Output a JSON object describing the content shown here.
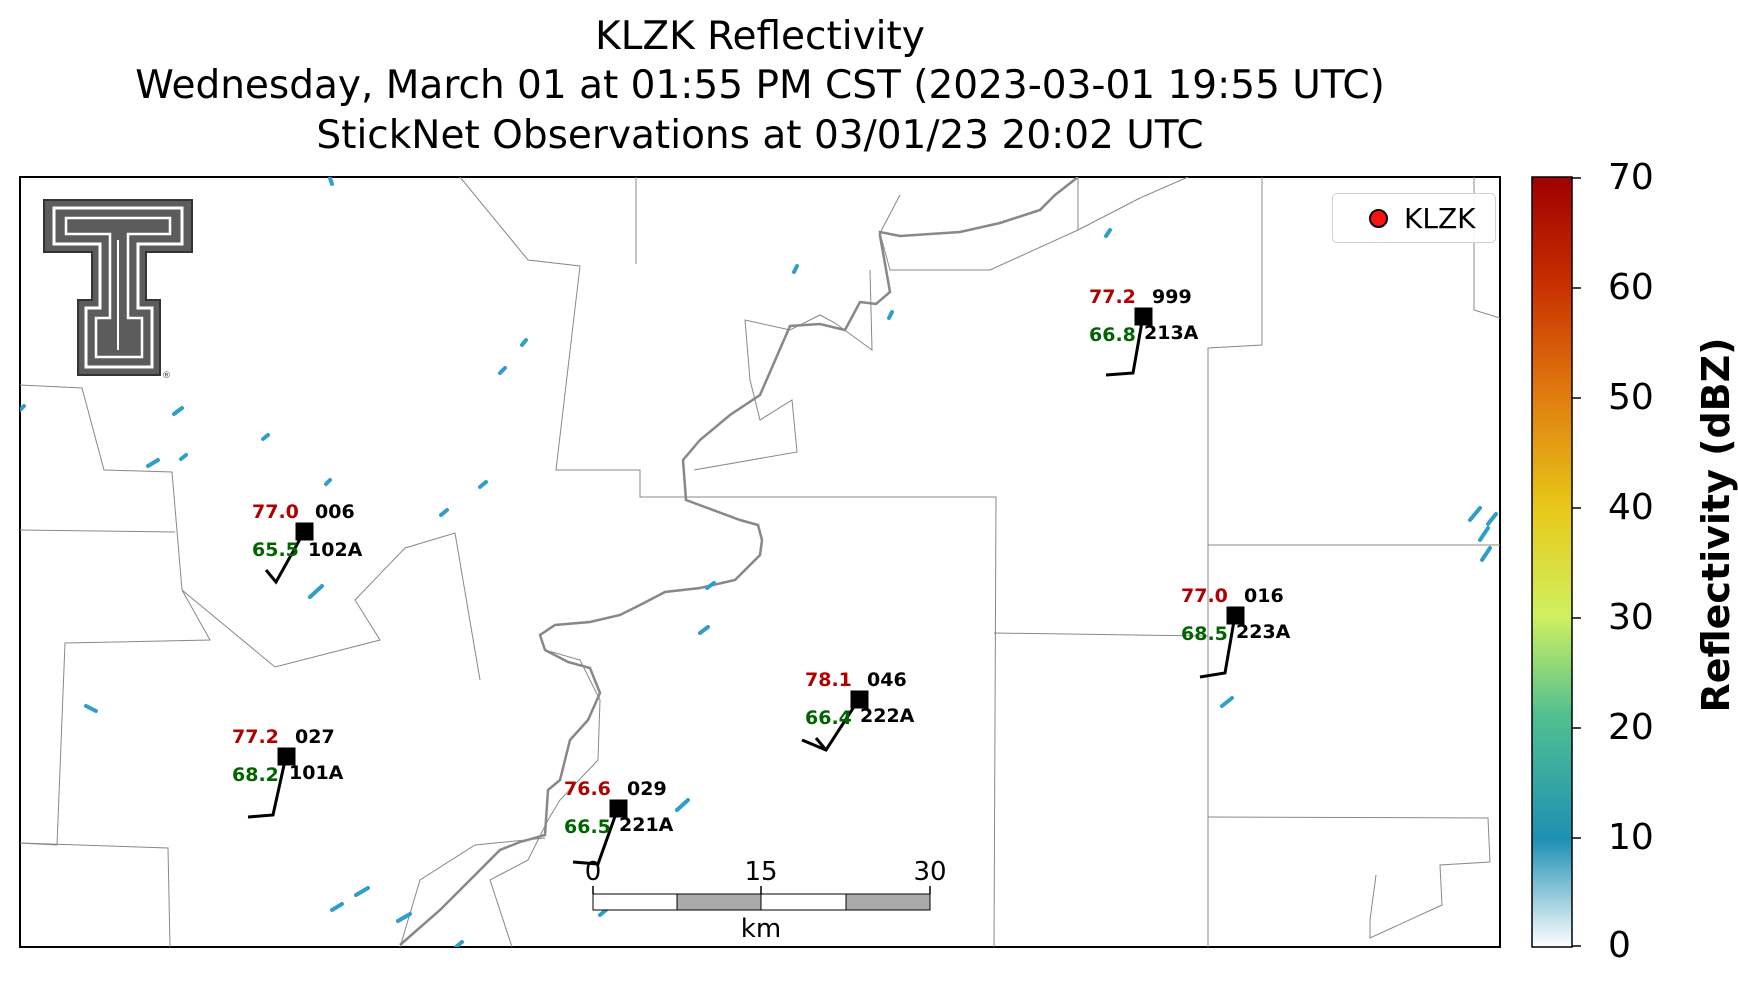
{
  "title": {
    "line1": "KLZK Reflectivity",
    "line2": "Wednesday, March 01 at 01:55 PM CST (2023-03-01 19:55 UTC)",
    "line3": "StickNet Observations at 03/01/23 20:02 UTC"
  },
  "legend": {
    "label": "KLZK",
    "marker_color": "#ff1010"
  },
  "colorbar": {
    "label": "Reflectivity (dBZ)",
    "ticks": [
      "70",
      "60",
      "50",
      "40",
      "30",
      "20",
      "10",
      "0"
    ],
    "colors": [
      "#ffffff",
      "#1e90b4",
      "#39b88a",
      "#c8f060",
      "#e8d020",
      "#e08a10",
      "#d04000",
      "#a00000"
    ]
  },
  "scalebar": {
    "labels": [
      "0",
      "15",
      "30"
    ],
    "unit": "km"
  },
  "logo": {
    "name": "texas-tech-double-t-logo"
  },
  "stations": [
    {
      "id": "102A",
      "temp": "77.0",
      "dew": "65.5",
      "dir": "006"
    },
    {
      "id": "101A",
      "temp": "77.2",
      "dew": "68.2",
      "dir": "027"
    },
    {
      "id": "221A",
      "temp": "76.6",
      "dew": "66.5",
      "dir": "029"
    },
    {
      "id": "222A",
      "temp": "78.1",
      "dew": "66.4",
      "dir": "046"
    },
    {
      "id": "213A",
      "temp": "77.2",
      "dew": "66.8",
      "dir": "999"
    },
    {
      "id": "223A",
      "temp": "77.0",
      "dew": "68.5",
      "dir": "016"
    }
  ]
}
